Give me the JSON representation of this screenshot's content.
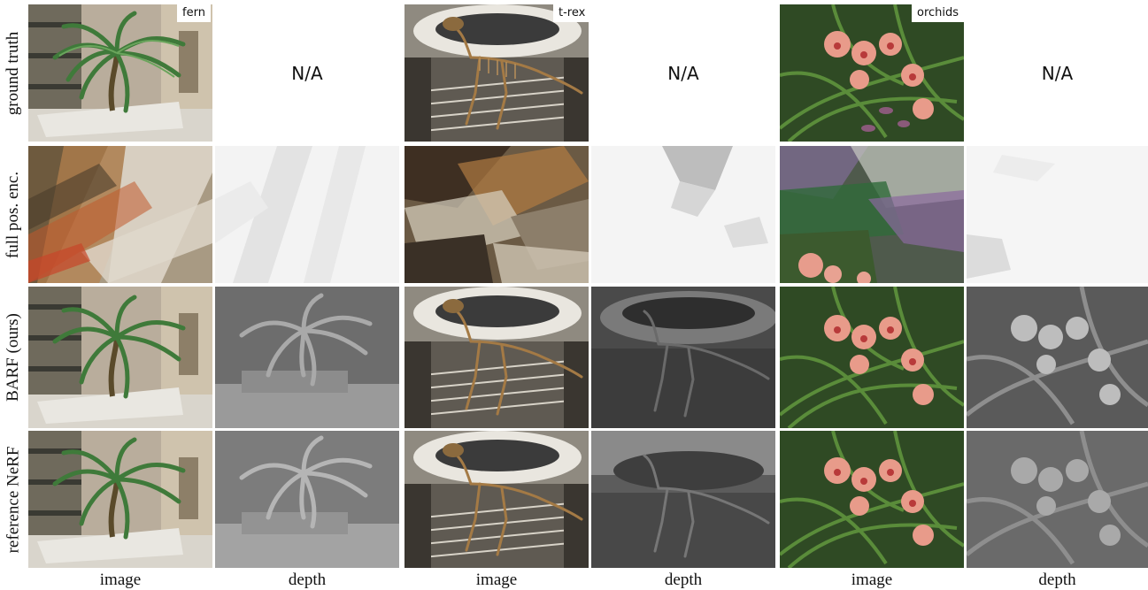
{
  "rows": [
    {
      "label": "ground truth"
    },
    {
      "label": "full pos. enc."
    },
    {
      "label": "BARF (ours)"
    },
    {
      "label": "reference NeRF"
    }
  ],
  "scenes": [
    {
      "name": "fern"
    },
    {
      "name": "t-rex"
    },
    {
      "name": "orchids"
    }
  ],
  "na_text": "N/A",
  "column_labels": [
    "image",
    "depth",
    "image",
    "depth",
    "image",
    "depth"
  ]
}
